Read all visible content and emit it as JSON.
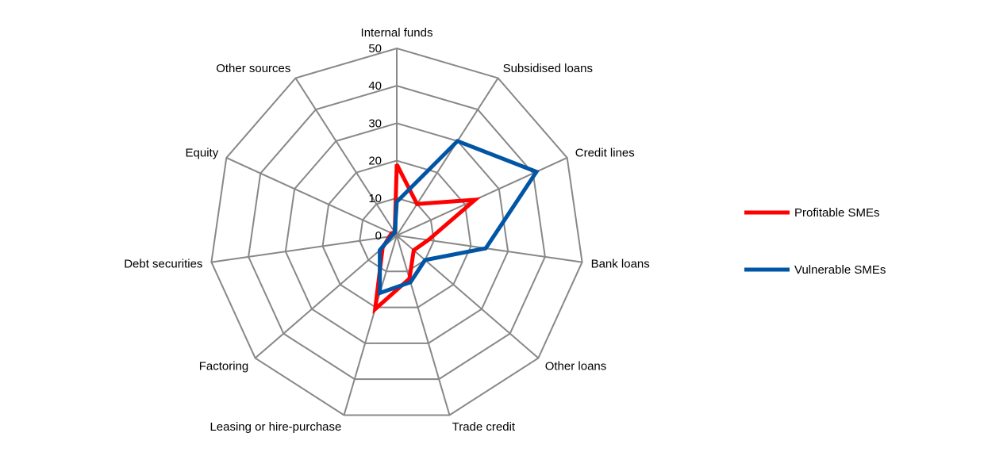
{
  "chart_data": {
    "type": "radar",
    "title": "",
    "categories": [
      "Internal funds",
      "Subsidised loans",
      "Credit lines",
      "Bank loans",
      "Other loans",
      "Trade credit",
      "Leasing or hire-purchase",
      "Factoring",
      "Debt securities",
      "Equity",
      "Other sources"
    ],
    "rlim": [
      0,
      50
    ],
    "ticks": [
      0,
      10,
      20,
      30,
      40,
      50
    ],
    "grid": true,
    "legend_position": "right",
    "series": [
      {
        "name": "Profitable SMEs",
        "color": "#ff0000",
        "values": [
          19,
          10,
          23,
          8.5,
          6,
          12,
          20.5,
          5,
          2,
          1.5,
          1
        ]
      },
      {
        "name": "Vulnerable SMEs",
        "color": "#0055a4",
        "values": [
          9,
          30,
          41,
          24,
          10,
          13,
          16,
          6,
          1.5,
          1,
          1
        ]
      }
    ]
  }
}
